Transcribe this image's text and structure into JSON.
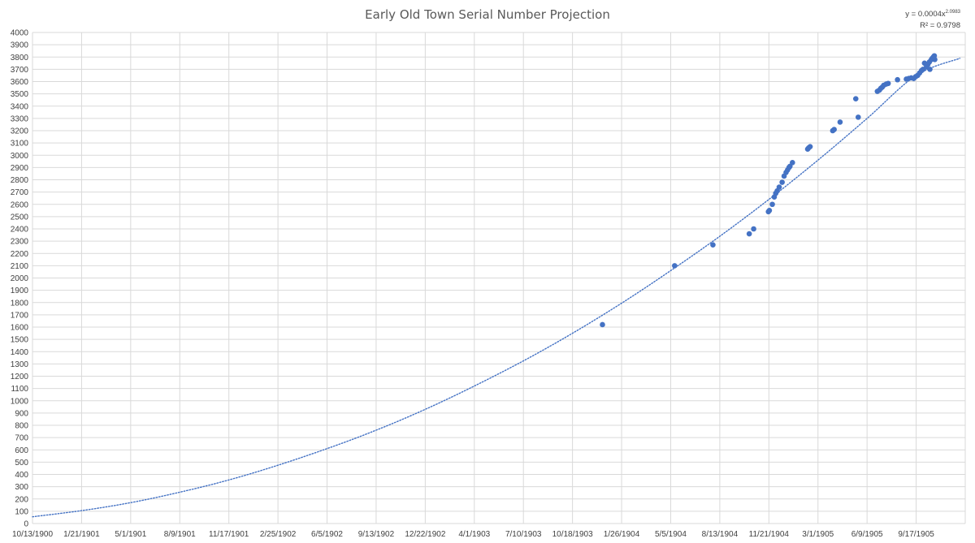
{
  "chart_data": {
    "type": "scatter",
    "title": "Early Old Town Serial Number Projection",
    "xlabel": "",
    "ylabel": "",
    "x_axis": {
      "kind": "date",
      "min": "1900-10-13",
      "max": "1905-12-26",
      "ticks": [
        "10/13/1900",
        "1/21/1901",
        "5/1/1901",
        "8/9/1901",
        "11/17/1901",
        "2/25/1902",
        "6/5/1902",
        "9/13/1902",
        "12/22/1902",
        "4/1/1903",
        "7/10/1903",
        "10/18/1903",
        "1/26/1904",
        "5/5/1904",
        "8/13/1904",
        "11/21/1904",
        "3/1/1905",
        "6/9/1905",
        "9/17/1905"
      ]
    },
    "y_axis": {
      "min": 0,
      "max": 4000,
      "step": 100
    },
    "grid": true,
    "legend": "none",
    "marker_color": "#4472c4",
    "trendline": {
      "type": "power",
      "color": "#4472c4",
      "style": "dotted",
      "equation_prefix": "y = 0.0004x",
      "equation_exponent": "2.0983",
      "r_squared_text": "R² = 0.9798",
      "curve": [
        {
          "x": "1900-10-13",
          "y": 55
        },
        {
          "x": "1901-01-21",
          "y": 105
        },
        {
          "x": "1901-05-01",
          "y": 170
        },
        {
          "x": "1901-08-09",
          "y": 255
        },
        {
          "x": "1901-11-17",
          "y": 355
        },
        {
          "x": "1902-02-25",
          "y": 475
        },
        {
          "x": "1902-06-05",
          "y": 610
        },
        {
          "x": "1902-09-13",
          "y": 760
        },
        {
          "x": "1902-12-22",
          "y": 930
        },
        {
          "x": "1903-04-01",
          "y": 1120
        },
        {
          "x": "1903-07-10",
          "y": 1325
        },
        {
          "x": "1903-10-18",
          "y": 1550
        },
        {
          "x": "1904-01-26",
          "y": 1795
        },
        {
          "x": "1904-05-05",
          "y": 2060
        },
        {
          "x": "1904-08-13",
          "y": 2340
        },
        {
          "x": "1904-11-21",
          "y": 2640
        },
        {
          "x": "1905-03-01",
          "y": 2960
        },
        {
          "x": "1905-06-09",
          "y": 3300
        },
        {
          "x": "1905-09-17",
          "y": 3650
        },
        {
          "x": "1905-12-15",
          "y": 3790
        }
      ]
    },
    "points": [
      {
        "x": "1903-12-18",
        "y": 1620
      },
      {
        "x": "1904-05-13",
        "y": 2100
      },
      {
        "x": "1904-07-30",
        "y": 2270
      },
      {
        "x": "1904-10-12",
        "y": 2360
      },
      {
        "x": "1904-10-21",
        "y": 2400
      },
      {
        "x": "1904-11-20",
        "y": 2540
      },
      {
        "x": "1904-11-22",
        "y": 2550
      },
      {
        "x": "1904-11-28",
        "y": 2600
      },
      {
        "x": "1904-12-02",
        "y": 2660
      },
      {
        "x": "1904-12-05",
        "y": 2690
      },
      {
        "x": "1904-12-08",
        "y": 2710
      },
      {
        "x": "1904-12-12",
        "y": 2740
      },
      {
        "x": "1904-12-18",
        "y": 2780
      },
      {
        "x": "1904-12-22",
        "y": 2830
      },
      {
        "x": "1904-12-26",
        "y": 2860
      },
      {
        "x": "1904-12-29",
        "y": 2880
      },
      {
        "x": "1905-01-01",
        "y": 2900
      },
      {
        "x": "1905-01-03",
        "y": 2910
      },
      {
        "x": "1905-01-08",
        "y": 2940
      },
      {
        "x": "1905-02-08",
        "y": 3050
      },
      {
        "x": "1905-02-10",
        "y": 3060
      },
      {
        "x": "1905-02-13",
        "y": 3070
      },
      {
        "x": "1905-03-31",
        "y": 3200
      },
      {
        "x": "1905-04-03",
        "y": 3210
      },
      {
        "x": "1905-04-15",
        "y": 3270
      },
      {
        "x": "1905-05-17",
        "y": 3460
      },
      {
        "x": "1905-05-22",
        "y": 3310
      },
      {
        "x": "1905-06-30",
        "y": 3520
      },
      {
        "x": "1905-07-04",
        "y": 3530
      },
      {
        "x": "1905-07-07",
        "y": 3545
      },
      {
        "x": "1905-07-10",
        "y": 3555
      },
      {
        "x": "1905-07-13",
        "y": 3570
      },
      {
        "x": "1905-07-18",
        "y": 3580
      },
      {
        "x": "1905-07-22",
        "y": 3585
      },
      {
        "x": "1905-08-10",
        "y": 3615
      },
      {
        "x": "1905-08-28",
        "y": 3620
      },
      {
        "x": "1905-09-02",
        "y": 3625
      },
      {
        "x": "1905-09-07",
        "y": 3630
      },
      {
        "x": "1905-09-12",
        "y": 3625
      },
      {
        "x": "1905-09-16",
        "y": 3640
      },
      {
        "x": "1905-09-20",
        "y": 3650
      },
      {
        "x": "1905-09-24",
        "y": 3670
      },
      {
        "x": "1905-09-28",
        "y": 3690
      },
      {
        "x": "1905-10-01",
        "y": 3700
      },
      {
        "x": "1905-10-04",
        "y": 3750
      },
      {
        "x": "1905-10-08",
        "y": 3720
      },
      {
        "x": "1905-10-11",
        "y": 3740
      },
      {
        "x": "1905-10-14",
        "y": 3760
      },
      {
        "x": "1905-10-15",
        "y": 3700
      },
      {
        "x": "1905-10-18",
        "y": 3780
      },
      {
        "x": "1905-10-20",
        "y": 3790
      },
      {
        "x": "1905-10-22",
        "y": 3800
      },
      {
        "x": "1905-10-24",
        "y": 3810
      },
      {
        "x": "1905-10-25",
        "y": 3780
      }
    ]
  }
}
